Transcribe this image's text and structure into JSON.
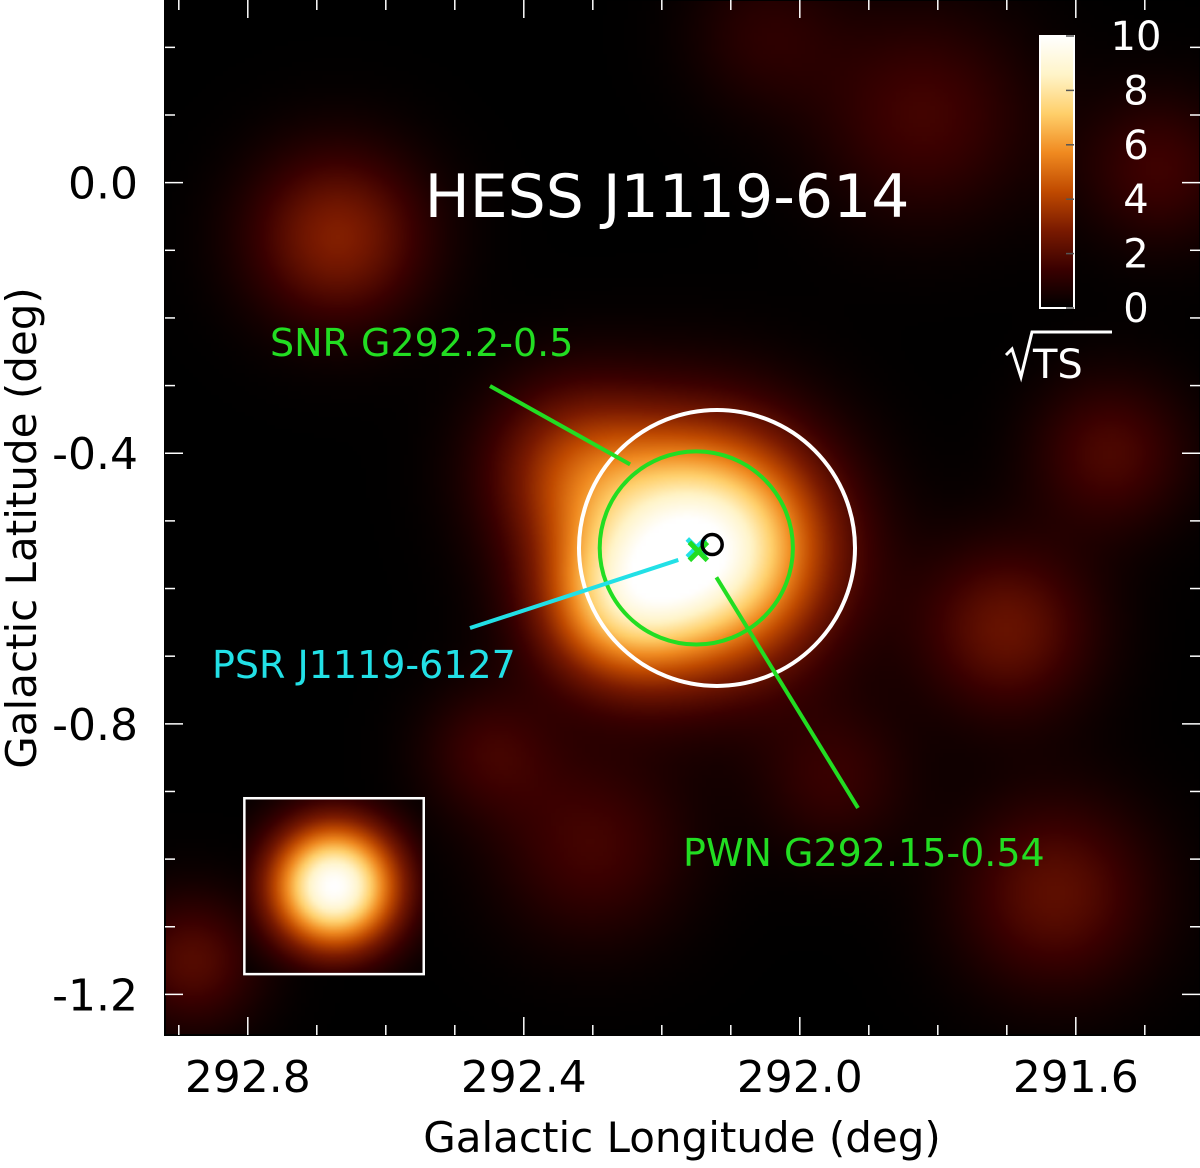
{
  "chart_data": {
    "type": "heatmap",
    "title": "HESS J1119-614",
    "xlabel": "Galactic Longitude (deg)",
    "ylabel": "Galactic Latitude (deg)",
    "xlim": [
      292.92,
      291.42
    ],
    "ylim": [
      -1.26,
      0.27
    ],
    "x_ticks": [
      292.8,
      292.4,
      292.0,
      291.6
    ],
    "x_tick_labels": [
      "292.8",
      "292.4",
      "292.0",
      "291.6"
    ],
    "y_ticks": [
      0.0,
      -0.4,
      -0.8,
      -1.2
    ],
    "y_tick_labels": [
      "0.0",
      "-0.4",
      "-0.8",
      "-1.2"
    ],
    "colorbar": {
      "label": "√TS",
      "range": [
        0,
        10
      ],
      "ticks": [
        0,
        2,
        4,
        6,
        8,
        10
      ],
      "tick_labels": [
        "0",
        "2",
        "4",
        "6",
        "8",
        "10"
      ]
    },
    "colormap": [
      "#000000",
      "#3a0000",
      "#7a1a00",
      "#c04a00",
      "#f08a20",
      "#ffcf6a",
      "#fff4c8",
      "#ffffff"
    ],
    "hotspots": [
      {
        "l": 292.14,
        "b": -0.54,
        "sigma_deg": 0.12,
        "amp": 10.0
      },
      {
        "l": 292.27,
        "b": -0.63,
        "sigma_deg": 0.08,
        "amp": 4.0
      },
      {
        "l": 292.33,
        "b": -0.42,
        "sigma_deg": 0.09,
        "amp": 3.0
      },
      {
        "l": 292.67,
        "b": -0.08,
        "sigma_deg": 0.09,
        "amp": 3.0
      },
      {
        "l": 291.7,
        "b": -0.66,
        "sigma_deg": 0.09,
        "amp": 2.4
      },
      {
        "l": 291.82,
        "b": 0.1,
        "sigma_deg": 0.11,
        "amp": 1.6
      },
      {
        "l": 291.63,
        "b": -1.05,
        "sigma_deg": 0.1,
        "amp": 2.2
      },
      {
        "l": 291.55,
        "b": -0.4,
        "sigma_deg": 0.08,
        "amp": 1.8
      },
      {
        "l": 292.3,
        "b": -0.98,
        "sigma_deg": 0.1,
        "amp": 1.6
      },
      {
        "l": 292.88,
        "b": -1.15,
        "sigma_deg": 0.07,
        "amp": 2.0
      },
      {
        "l": 292.45,
        "b": -0.84,
        "sigma_deg": 0.07,
        "amp": 1.4
      },
      {
        "l": 291.95,
        "b": -0.88,
        "sigma_deg": 0.08,
        "amp": 1.3
      },
      {
        "l": 291.48,
        "b": 0.02,
        "sigma_deg": 0.08,
        "amp": 1.5
      },
      {
        "l": 292.05,
        "b": 0.22,
        "sigma_deg": 0.08,
        "amp": 1.0
      }
    ],
    "psf_inset": {
      "center_l": 292.675,
      "center_b": -1.04,
      "half_width_deg": 0.13,
      "sigma_deg": 0.065
    },
    "regions": [
      {
        "name": "extent",
        "l": 292.12,
        "b": -0.54,
        "radius_deg": 0.2,
        "color": "#ffffff"
      },
      {
        "name": "SNR G292.2-0.5",
        "l": 292.15,
        "b": -0.54,
        "radius_deg": 0.14,
        "color": "#22dd22"
      }
    ],
    "markers": [
      {
        "name": "PSR J1119-6127",
        "l": 292.15,
        "b": -0.54,
        "shape": "x",
        "color": "#22e0e6"
      },
      {
        "name": "PWN G292.15-0.54",
        "l": 292.147,
        "b": -0.545,
        "shape": "x",
        "color": "#22dd22"
      },
      {
        "name": "best-fit position",
        "l": 292.127,
        "b": -0.535,
        "shape": "circle",
        "color": "#000000"
      }
    ],
    "annotations": [
      {
        "text": "SNR G292.2-0.5",
        "color": "#22dd22"
      },
      {
        "text": "PSR J1119-6127",
        "color": "#22e0e6"
      },
      {
        "text": "PWN G292.15-0.54",
        "color": "#22dd22"
      }
    ]
  }
}
